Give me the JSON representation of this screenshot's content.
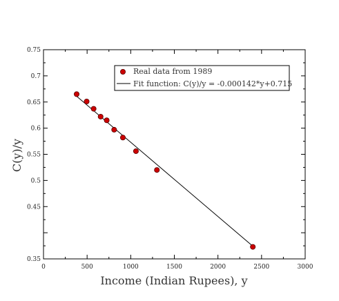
{
  "chart_data": {
    "type": "scatter",
    "title": "",
    "xlabel": "Income (Indian Rupees), y",
    "ylabel": "C(y)/y",
    "xlim": [
      0,
      3000
    ],
    "ylim": [
      0.35,
      0.75
    ],
    "x_ticks": [
      0,
      500,
      1000,
      1500,
      2000,
      2500,
      3000
    ],
    "y_ticks": [
      0.35,
      0.4,
      0.45,
      0.5,
      0.55,
      0.6,
      0.65,
      0.7,
      0.75
    ],
    "y_tick_labels": [
      "0.35",
      "",
      "0.45",
      "0.5",
      "0.55",
      "0.6",
      "0.65",
      "0.7",
      "0.75"
    ],
    "grid": false,
    "legend_position": "top-right",
    "series": [
      {
        "name": "Real data from 1989",
        "kind": "scatter",
        "color": "#cc0000",
        "points": [
          {
            "x": 380,
            "y": 0.665
          },
          {
            "x": 495,
            "y": 0.651
          },
          {
            "x": 575,
            "y": 0.637
          },
          {
            "x": 655,
            "y": 0.622
          },
          {
            "x": 725,
            "y": 0.615
          },
          {
            "x": 810,
            "y": 0.597
          },
          {
            "x": 910,
            "y": 0.582
          },
          {
            "x": 1060,
            "y": 0.556
          },
          {
            "x": 1300,
            "y": 0.52
          },
          {
            "x": 2400,
            "y": 0.373
          }
        ]
      },
      {
        "name": "Fit function: C(y)/y = -0.000142*y+0.715",
        "kind": "line",
        "color": "#000000",
        "slope": -0.000142,
        "intercept": 0.715,
        "x_range": [
          360,
          2400
        ]
      }
    ]
  }
}
